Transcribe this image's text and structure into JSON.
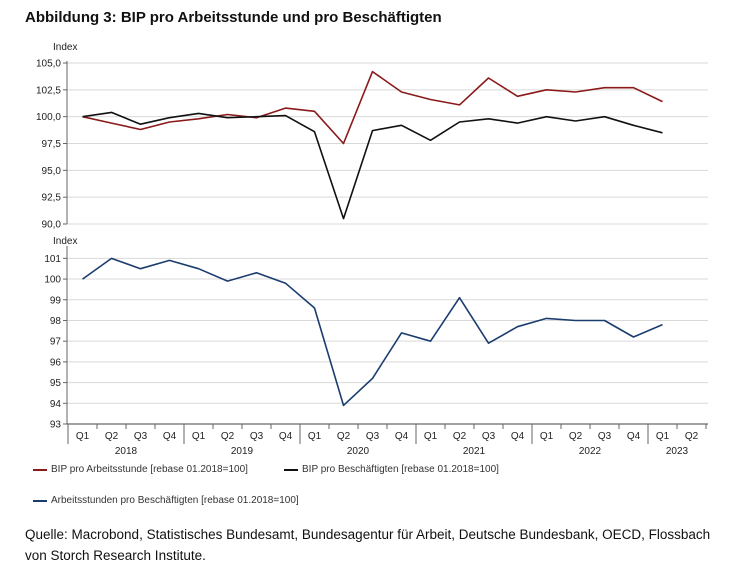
{
  "title": "Abbildung 3: BIP pro Arbeitsstunde und pro Beschäftigten",
  "source": "Quelle: Macrobond, Statistisches Bundesamt, Bundesagentur für Arbeit, Deutsche Bundesbank, OECD, Flossbach von Storch Research Institute.",
  "colors": {
    "red": "#8b1a1a",
    "black": "#111111",
    "blue": "#1b3d6e",
    "grid": "#d9d9d9"
  },
  "chart_data": [
    {
      "type": "line",
      "ylabel": "Index",
      "ylim": [
        90,
        105
      ],
      "yticks": [
        "90,0",
        "92,5",
        "95,0",
        "97,5",
        "100,0",
        "102,5",
        "105,0"
      ],
      "grid": true,
      "series": [
        {
          "name": "BIP pro Arbeitsstunde [rebase 01.2018=100]",
          "color": "#8b1a1a",
          "values": [
            100.0,
            99.4,
            98.8,
            99.5,
            99.8,
            100.2,
            99.9,
            100.8,
            100.5,
            97.5,
            104.2,
            102.3,
            101.6,
            101.1,
            103.6,
            101.9,
            102.5,
            102.3,
            102.7,
            102.7,
            101.4
          ]
        },
        {
          "name": "BIP pro Beschäftigten [rebase 01.2018=100]",
          "color": "#111111",
          "values": [
            100.0,
            100.4,
            99.3,
            99.9,
            100.3,
            99.9,
            100.0,
            100.1,
            98.6,
            90.5,
            98.7,
            99.2,
            97.8,
            99.5,
            99.8,
            99.4,
            100.0,
            99.6,
            100.0,
            99.2,
            98.5
          ]
        }
      ]
    },
    {
      "type": "line",
      "ylabel": "Index",
      "ylim": [
        93,
        101.5
      ],
      "yticks": [
        "93",
        "94",
        "95",
        "96",
        "97",
        "98",
        "99",
        "100",
        "101"
      ],
      "grid": true,
      "series": [
        {
          "name": "Arbeitsstunden pro Beschäftigten [rebase 01.2018=100]",
          "color": "#1b3d6e",
          "values": [
            100.0,
            101.0,
            100.5,
            100.9,
            100.5,
            99.9,
            100.3,
            99.8,
            98.6,
            93.9,
            95.2,
            97.4,
            97.0,
            99.1,
            96.9,
            97.7,
            98.1,
            98.0,
            98.0,
            97.2,
            97.8
          ]
        }
      ]
    }
  ],
  "x_axis": {
    "quarters": [
      "Q1",
      "Q2",
      "Q3",
      "Q4",
      "Q1",
      "Q2",
      "Q3",
      "Q4",
      "Q1",
      "Q2",
      "Q3",
      "Q4",
      "Q1",
      "Q2",
      "Q3",
      "Q4",
      "Q1",
      "Q2",
      "Q3",
      "Q4",
      "Q1",
      "Q2"
    ],
    "years": [
      "2018",
      "2019",
      "2020",
      "2021",
      "2022",
      "2023"
    ]
  },
  "legend": {
    "red_label": "BIP pro Arbeitsstunde [rebase 01.2018=100]",
    "black_label": "BIP pro Beschäftigten [rebase 01.2018=100]",
    "blue_label": "Arbeitsstunden pro Beschäftigten [rebase 01.2018=100]"
  }
}
